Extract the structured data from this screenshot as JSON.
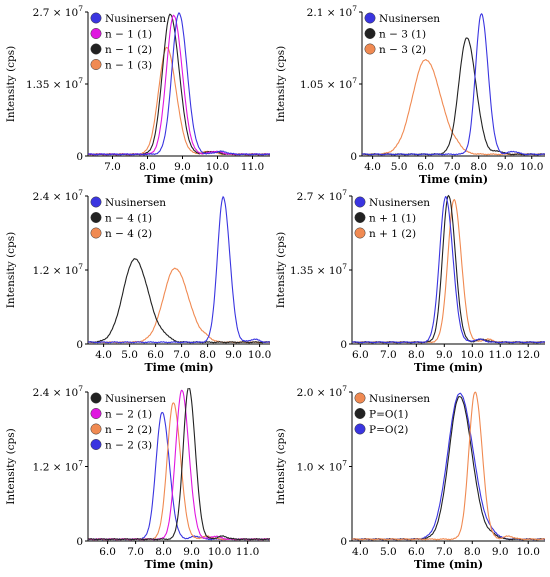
{
  "colors": {
    "Nusinersen": "#3a35e0",
    "black": "#222222",
    "orange": "#f08a52",
    "magenta": "#e016e0"
  },
  "chart_data": [
    {
      "type": "line",
      "xlabel": "Time (min)",
      "ylabel": "Intensity (cps)",
      "xlim": [
        6.3,
        11.5
      ],
      "xticks": [
        "7.0",
        "8.0",
        "9.0",
        "10.0",
        "11.0"
      ],
      "xtick_values": [
        7,
        8,
        9,
        10,
        11
      ],
      "ylim": [
        0,
        27000000
      ],
      "yticks": [
        {
          "value": 0,
          "base": "0",
          "exp": ""
        },
        {
          "value": 13500000,
          "base": "1.35 × 10",
          "exp": "7"
        },
        {
          "value": 27000000,
          "base": "2.7 × 10",
          "exp": "7"
        }
      ],
      "legend": [
        {
          "label": "Nusinersen",
          "color": "#3a35e0"
        },
        {
          "label": "n − 1 (1)",
          "color": "#e016e0"
        },
        {
          "label": "n − 1 (2)",
          "color": "#222222"
        },
        {
          "label": "n − 1 (3)",
          "color": "#f08a52"
        }
      ],
      "series": [
        {
          "name": "Nusinersen",
          "color": "#3a35e0",
          "center": 8.9,
          "height": 26500000,
          "sigma": 0.2
        },
        {
          "name": "n − 1 (1)",
          "color": "#e016e0",
          "center": 8.75,
          "height": 26000000,
          "sigma": 0.21
        },
        {
          "name": "n − 1 (2)",
          "color": "#222222",
          "center": 8.65,
          "height": 26200000,
          "sigma": 0.22
        },
        {
          "name": "n − 1 (3)",
          "color": "#f08a52",
          "center": 8.55,
          "height": 20000000,
          "sigma": 0.23
        }
      ]
    },
    {
      "type": "line",
      "xlabel": "Time (min)",
      "ylabel": "Intensity (cps)",
      "xlim": [
        3.6,
        10.5
      ],
      "xticks": [
        "4.0",
        "5.0",
        "6.0",
        "7.0",
        "8.0",
        "9.0",
        "10.0"
      ],
      "xtick_values": [
        4,
        5,
        6,
        7,
        8,
        9,
        10
      ],
      "ylim": [
        0,
        21000000
      ],
      "yticks": [
        {
          "value": 0,
          "base": "0",
          "exp": ""
        },
        {
          "value": 10500000,
          "base": "1.05 × 10",
          "exp": "7"
        },
        {
          "value": 21000000,
          "base": "2.1 × 10",
          "exp": "7"
        }
      ],
      "legend": [
        {
          "label": "Nusinersen",
          "color": "#3a35e0"
        },
        {
          "label": "n − 3 (1)",
          "color": "#222222"
        },
        {
          "label": "n − 3 (2)",
          "color": "#f08a52"
        }
      ],
      "series": [
        {
          "name": "Nusinersen",
          "color": "#3a35e0",
          "center": 8.1,
          "height": 20500000,
          "sigma": 0.22
        },
        {
          "name": "n − 3 (1)",
          "color": "#222222",
          "center": 7.55,
          "height": 17000000,
          "sigma": 0.3
        },
        {
          "name": "n − 3 (2)",
          "color": "#f08a52",
          "center": 6.0,
          "height": 13800000,
          "sigma": 0.5
        }
      ]
    },
    {
      "type": "line",
      "xlabel": "Time (min)",
      "ylabel": "Intensity (cps)",
      "xlim": [
        3.4,
        10.4
      ],
      "xticks": [
        "4.0",
        "5.0",
        "6.0",
        "7.0",
        "8.0",
        "9.0",
        "10.0"
      ],
      "xtick_values": [
        4,
        5,
        6,
        7,
        8,
        9,
        10
      ],
      "ylim": [
        0,
        24000000
      ],
      "yticks": [
        {
          "value": 0,
          "base": "0",
          "exp": ""
        },
        {
          "value": 12000000,
          "base": "1.2 × 10",
          "exp": "7"
        },
        {
          "value": 24000000,
          "base": "2.4 × 10",
          "exp": "7"
        }
      ],
      "legend": [
        {
          "label": "Nusinersen",
          "color": "#3a35e0"
        },
        {
          "label": "n − 4 (1)",
          "color": "#222222"
        },
        {
          "label": "n − 4 (2)",
          "color": "#f08a52"
        }
      ],
      "series": [
        {
          "name": "Nusinersen",
          "color": "#3a35e0",
          "center": 8.6,
          "height": 23500000,
          "sigma": 0.22
        },
        {
          "name": "n − 4 (1)",
          "color": "#222222",
          "center": 5.2,
          "height": 13500000,
          "sigma": 0.45
        },
        {
          "name": "n − 4 (2)",
          "color": "#f08a52",
          "center": 6.75,
          "height": 12000000,
          "sigma": 0.45
        }
      ]
    },
    {
      "type": "line",
      "xlabel": "Time (min)",
      "ylabel": "Intensity (cps)",
      "xlim": [
        5.7,
        12.6
      ],
      "xticks": [
        "6.0",
        "7.0",
        "8.0",
        "9.0",
        "10.0",
        "11.0",
        "12.0"
      ],
      "xtick_values": [
        6,
        7,
        8,
        9,
        10,
        11,
        12
      ],
      "ylim": [
        0,
        27000000
      ],
      "yticks": [
        {
          "value": 0,
          "base": "0",
          "exp": ""
        },
        {
          "value": 13500000,
          "base": "1.35 × 10",
          "exp": "7"
        },
        {
          "value": 27000000,
          "base": "2.7 × 10",
          "exp": "7"
        }
      ],
      "legend": [
        {
          "label": "Nusinersen",
          "color": "#3a35e0"
        },
        {
          "label": "n + 1 (1)",
          "color": "#222222"
        },
        {
          "label": "n + 1 (2)",
          "color": "#f08a52"
        }
      ],
      "series": [
        {
          "name": "Nusinersen",
          "color": "#3a35e0",
          "center": 9.05,
          "height": 26500000,
          "sigma": 0.22
        },
        {
          "name": "n + 1 (1)",
          "color": "#222222",
          "center": 9.15,
          "height": 26800000,
          "sigma": 0.21
        },
        {
          "name": "n + 1 (2)",
          "color": "#f08a52",
          "center": 9.35,
          "height": 26000000,
          "sigma": 0.22
        }
      ]
    },
    {
      "type": "line",
      "xlabel": "Time (min)",
      "ylabel": "Intensity (cps)",
      "xlim": [
        5.3,
        11.8
      ],
      "xticks": [
        "6.0",
        "7.0",
        "8.0",
        "9.0",
        "10.0",
        "11.0"
      ],
      "xtick_values": [
        6,
        7,
        8,
        9,
        10,
        11
      ],
      "ylim": [
        0,
        24000000
      ],
      "yticks": [
        {
          "value": 0,
          "base": "0",
          "exp": ""
        },
        {
          "value": 12000000,
          "base": "1.2 × 10",
          "exp": "7"
        },
        {
          "value": 24000000,
          "base": "2.4 × 10",
          "exp": "7"
        }
      ],
      "legend": [
        {
          "label": "Nusinersen",
          "color": "#222222"
        },
        {
          "label": "n − 2 (1)",
          "color": "#e016e0"
        },
        {
          "label": "n − 2 (2)",
          "color": "#f08a52"
        },
        {
          "label": "n − 2 (3)",
          "color": "#3a35e0"
        }
      ],
      "series": [
        {
          "name": "Nusinersen",
          "color": "#222222",
          "center": 8.9,
          "height": 24500000,
          "sigma": 0.2
        },
        {
          "name": "n − 2 (1)",
          "color": "#e016e0",
          "center": 8.65,
          "height": 24000000,
          "sigma": 0.22
        },
        {
          "name": "n − 2 (2)",
          "color": "#f08a52",
          "center": 8.35,
          "height": 22000000,
          "sigma": 0.22
        },
        {
          "name": "n − 2 (3)",
          "color": "#3a35e0",
          "center": 7.95,
          "height": 20500000,
          "sigma": 0.22
        }
      ]
    },
    {
      "type": "line",
      "xlabel": "Time (min)",
      "ylabel": "Intensity (cps)",
      "xlim": [
        3.7,
        10.6
      ],
      "xticks": [
        "4.0",
        "5.0",
        "6.0",
        "7.0",
        "8.0",
        "9.0",
        "10.0"
      ],
      "xtick_values": [
        4,
        5,
        6,
        7,
        8,
        9,
        10
      ],
      "ylim": [
        0,
        20000000
      ],
      "yticks": [
        {
          "value": 0,
          "base": "0",
          "exp": ""
        },
        {
          "value": 10000000,
          "base": "1.0 × 10",
          "exp": "7"
        },
        {
          "value": 20000000,
          "base": "2.0 × 10",
          "exp": "7"
        }
      ],
      "legend": [
        {
          "label": "Nusinersen",
          "color": "#f08a52"
        },
        {
          "label": "P=O(1)",
          "color": "#222222"
        },
        {
          "label": "P=O(2)",
          "color": "#3a35e0"
        }
      ],
      "series": [
        {
          "name": "Nusinersen",
          "color": "#f08a52",
          "center": 8.1,
          "height": 19800000,
          "sigma": 0.22
        },
        {
          "name": "P=O(1)",
          "color": "#222222",
          "center": 7.55,
          "height": 19200000,
          "sigma": 0.38
        },
        {
          "name": "P=O(2)",
          "color": "#3a35e0",
          "center": 7.55,
          "height": 19600000,
          "sigma": 0.42
        }
      ]
    }
  ]
}
